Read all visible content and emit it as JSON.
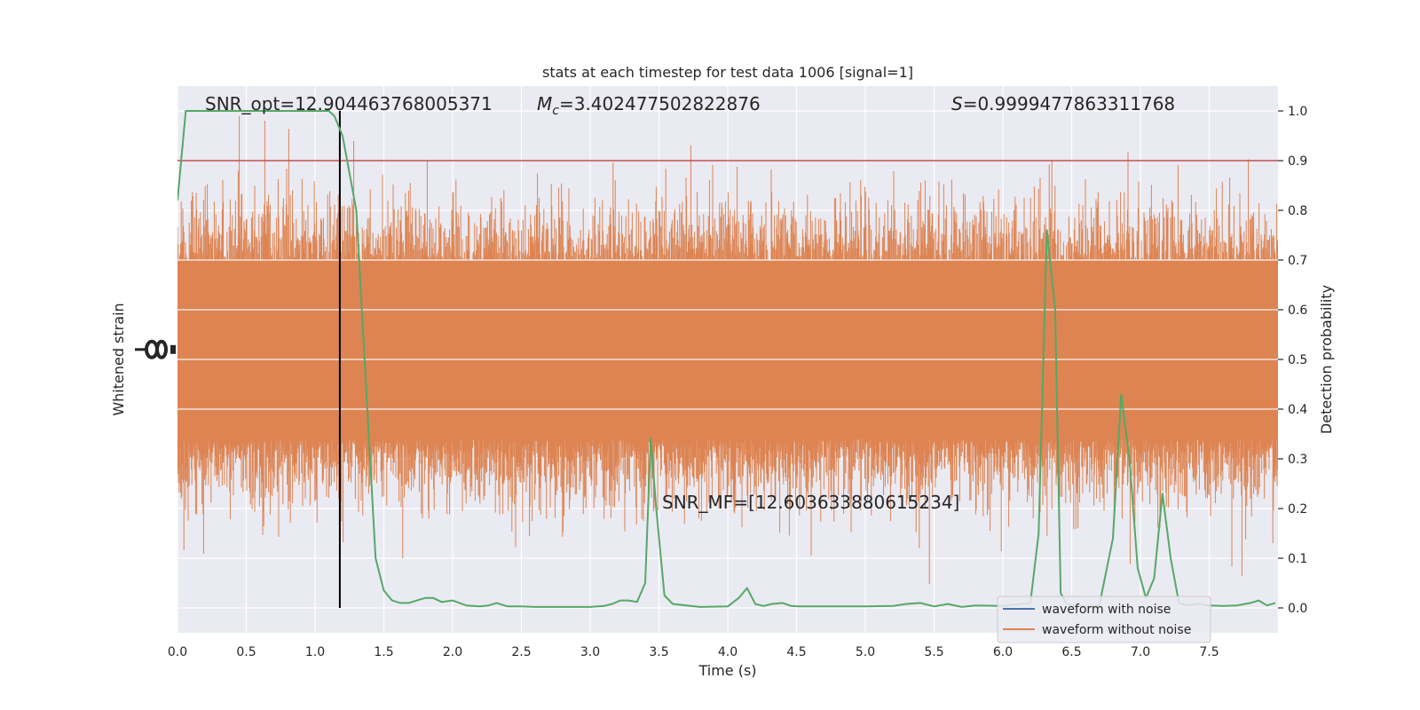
{
  "chart_data": {
    "type": "line",
    "title": "stats at each timestep for test data 1006 [signal=1]",
    "xlabel": "Time (s)",
    "ylabel_left": "Whitened strain",
    "ylabel_right": "Detection probability",
    "xlim": [
      0.0,
      8.0
    ],
    "ylim_right": [
      -0.05,
      1.05
    ],
    "x_ticks": [
      "0.0",
      "0.5",
      "1.0",
      "1.5",
      "2.0",
      "2.5",
      "3.0",
      "3.5",
      "4.0",
      "4.5",
      "5.0",
      "5.5",
      "6.0",
      "6.5",
      "7.0",
      "7.5"
    ],
    "y_ticks_right": [
      "0.0",
      "0.1",
      "0.2",
      "0.3",
      "0.4",
      "0.5",
      "0.6",
      "0.7",
      "0.8",
      "0.9",
      "1.0"
    ],
    "grid": true,
    "legend_position": "lower-right",
    "annotations": {
      "snr_opt": "SNR_opt=12.904463768005371",
      "mc_symbol": "M",
      "mc_sub": "c",
      "mc_value": "=3.402477502822876",
      "s_symbol": "S",
      "s_value": "=0.9999477863311768",
      "snr_mf": "SNR_MF=[12.603633880615234]"
    },
    "threshold": 0.9,
    "vline_x": 1.18,
    "series": [
      {
        "name": "waveform with noise",
        "color": "#4c72b0"
      },
      {
        "name": "waveform without noise",
        "color": "#dd8452"
      }
    ],
    "detection_probability": {
      "color": "#55a868",
      "x": [
        0.0,
        0.06,
        0.12,
        0.3,
        0.6,
        0.9,
        1.1,
        1.14,
        1.2,
        1.3,
        1.4,
        1.44,
        1.5,
        1.56,
        1.62,
        1.68,
        1.74,
        1.8,
        1.86,
        1.92,
        2.0,
        2.1,
        2.2,
        2.26,
        2.32,
        2.4,
        2.5,
        2.6,
        2.8,
        3.0,
        3.1,
        3.16,
        3.22,
        3.28,
        3.34,
        3.4,
        3.44,
        3.48,
        3.54,
        3.6,
        3.7,
        3.8,
        4.0,
        4.08,
        4.14,
        4.2,
        4.26,
        4.32,
        4.4,
        4.46,
        4.52,
        4.6,
        4.8,
        5.0,
        5.2,
        5.3,
        5.4,
        5.5,
        5.6,
        5.7,
        5.8,
        6.0,
        6.2,
        6.26,
        6.32,
        6.38,
        6.42,
        6.46,
        6.5,
        6.56,
        6.7,
        6.8,
        6.86,
        6.92,
        6.98,
        7.04,
        7.1,
        7.16,
        7.22,
        7.28,
        7.34,
        7.42,
        7.5,
        7.6,
        7.7,
        7.8,
        7.86,
        7.92,
        7.98
      ],
      "y": [
        0.82,
        1.0,
        1.0,
        1.0,
        1.0,
        1.0,
        1.0,
        0.99,
        0.95,
        0.8,
        0.3,
        0.1,
        0.035,
        0.015,
        0.01,
        0.01,
        0.015,
        0.02,
        0.02,
        0.012,
        0.015,
        0.005,
        0.003,
        0.005,
        0.01,
        0.003,
        0.003,
        0.002,
        0.002,
        0.002,
        0.004,
        0.008,
        0.015,
        0.015,
        0.012,
        0.05,
        0.34,
        0.2,
        0.025,
        0.008,
        0.005,
        0.002,
        0.003,
        0.02,
        0.04,
        0.008,
        0.004,
        0.008,
        0.01,
        0.004,
        0.003,
        0.003,
        0.003,
        0.003,
        0.004,
        0.008,
        0.01,
        0.003,
        0.008,
        0.002,
        0.005,
        0.004,
        0.01,
        0.15,
        0.76,
        0.6,
        0.03,
        0.01,
        0.005,
        0.004,
        0.004,
        0.14,
        0.43,
        0.3,
        0.08,
        0.02,
        0.06,
        0.23,
        0.1,
        0.01,
        0.005,
        0.008,
        0.005,
        0.004,
        0.005,
        0.01,
        0.015,
        0.005,
        0.01
      ]
    }
  }
}
